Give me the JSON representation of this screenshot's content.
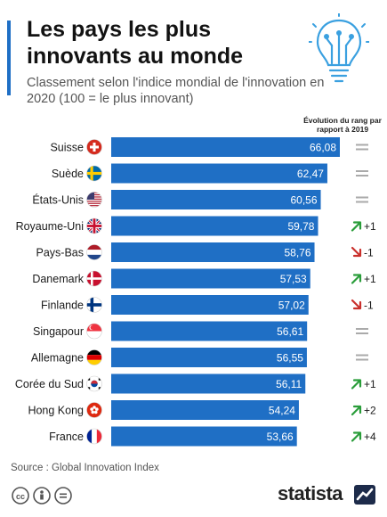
{
  "header": {
    "title": "Les pays les plus innovants au monde",
    "subtitle": "Classement selon l'indice mondial de l'innovation en 2020 (100 = le plus innovant)"
  },
  "evolution_header": "Évolution du rang par rapport à 2019",
  "source": "Source : Global Innovation Index",
  "brand": "statista",
  "colors": {
    "bar": "#1f6fc5",
    "accent": "#1f6fc5",
    "up": "#2a9d3a",
    "down": "#c9302c",
    "equal": "#aaaaaa"
  },
  "chart_data": {
    "type": "bar",
    "orientation": "horizontal",
    "categories": [
      "Suisse",
      "Suède",
      "États-Unis",
      "Royaume-Uni",
      "Pays-Bas",
      "Danemark",
      "Finlande",
      "Singapour",
      "Allemagne",
      "Corée du Sud",
      "Hong Kong",
      "France"
    ],
    "values": [
      66.08,
      62.47,
      60.56,
      59.78,
      58.76,
      57.53,
      57.02,
      56.61,
      56.55,
      56.11,
      54.24,
      53.66
    ],
    "value_labels": [
      "66,08",
      "62,47",
      "60,56",
      "59,78",
      "58,76",
      "57,53",
      "57,02",
      "56,61",
      "56,55",
      "56,11",
      "54,24",
      "53,66"
    ],
    "rank_change": [
      {
        "trend": "equal",
        "text": ""
      },
      {
        "trend": "equal",
        "text": ""
      },
      {
        "trend": "equal",
        "text": ""
      },
      {
        "trend": "up",
        "text": "+1"
      },
      {
        "trend": "down",
        "text": "-1"
      },
      {
        "trend": "up",
        "text": "+1"
      },
      {
        "trend": "down",
        "text": "-1"
      },
      {
        "trend": "equal",
        "text": ""
      },
      {
        "trend": "equal",
        "text": ""
      },
      {
        "trend": "up",
        "text": "+1"
      },
      {
        "trend": "up",
        "text": "+2"
      },
      {
        "trend": "up",
        "text": "+4"
      }
    ],
    "flags": [
      "switzerland-flag-icon",
      "sweden-flag-icon",
      "usa-flag-icon",
      "uk-flag-icon",
      "netherlands-flag-icon",
      "denmark-flag-icon",
      "finland-flag-icon",
      "singapore-flag-icon",
      "germany-flag-icon",
      "south-korea-flag-icon",
      "hong-kong-flag-icon",
      "france-flag-icon"
    ],
    "title": "",
    "xlabel": "",
    "ylabel": "",
    "xlim": [
      0,
      66.08
    ],
    "grid": false,
    "legend": "none"
  }
}
